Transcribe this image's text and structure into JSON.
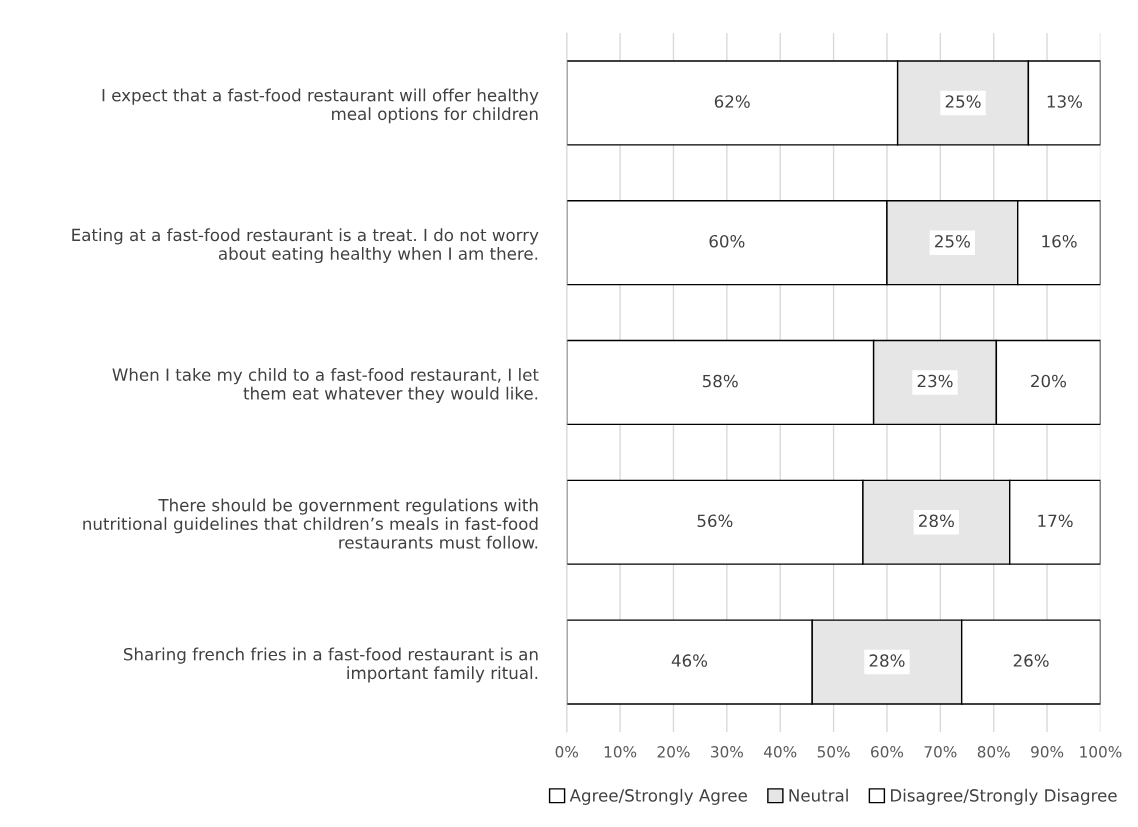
{
  "chart_data": {
    "type": "bar",
    "orientation": "horizontal",
    "stacked": true,
    "categories": [
      "I expect that a fast-food restaurant will offer healthy\nmeal options for children",
      "Eating at a fast-food restaurant is a treat. I do not worry\nabout eating healthy when I am there.",
      "When I take my child to a fast-food restaurant, I let\nthem eat whatever they would like.",
      "There should be government regulations with\nnutritional guidelines that children’s meals in fast-food\nrestaurants must follow.",
      "Sharing french fries in a fast-food restaurant is an\nimportant family ritual."
    ],
    "series": [
      {
        "name": "Agree/Strongly Agree",
        "color": "#ffffff",
        "values": [
          62,
          60,
          57.5,
          55.5,
          46
        ],
        "value_labels": [
          "62%",
          "60%",
          "58%",
          "56%",
          "46%"
        ]
      },
      {
        "name": "Neutral",
        "color": "#e7e6e6",
        "values": [
          24.5,
          24.5,
          23,
          27.5,
          28
        ],
        "value_labels": [
          "25%",
          "25%",
          "23%",
          "28%",
          "28%"
        ]
      },
      {
        "name": "Disagree/Strongly Disagree",
        "color": "#ffffff",
        "values": [
          13.5,
          15.5,
          19.5,
          17,
          26
        ],
        "value_labels": [
          "13%",
          "16%",
          "20%",
          "17%",
          "26%"
        ]
      }
    ],
    "xlim": [
      0,
      100
    ],
    "xticks": [
      {
        "value": 0,
        "label": "0%"
      },
      {
        "value": 10,
        "label": "10%"
      },
      {
        "value": 20,
        "label": "20%"
      },
      {
        "value": 30,
        "label": "30%"
      },
      {
        "value": 40,
        "label": "40%"
      },
      {
        "value": 50,
        "label": "50%"
      },
      {
        "value": 60,
        "label": "60%"
      },
      {
        "value": 70,
        "label": "70%"
      },
      {
        "value": 80,
        "label": "80%"
      },
      {
        "value": 90,
        "label": "90%"
      },
      {
        "value": 100,
        "label": "100%"
      }
    ],
    "grid": "x",
    "legend": "bottom"
  }
}
